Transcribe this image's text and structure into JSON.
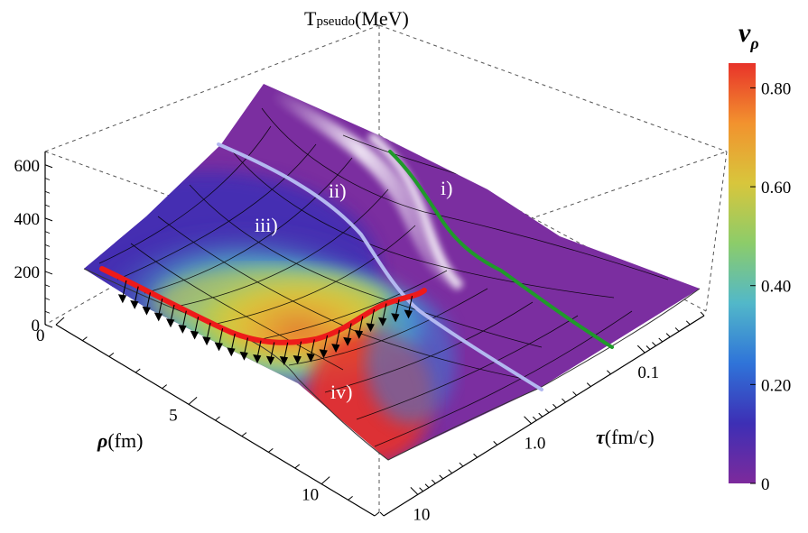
{
  "chart_data": {
    "type": "surface3d",
    "title": "",
    "z_axis": {
      "label_main": "T",
      "label_sub": "pseudo",
      "label_unit": "(MeV)",
      "ticks": [
        0,
        200,
        400,
        600
      ],
      "tick_labels": [
        "0",
        "200",
        "400",
        "600"
      ],
      "range": [
        0,
        650
      ]
    },
    "rho_axis": {
      "label_symbol": "ρ",
      "label_unit": "(fm)",
      "ticks": [
        0,
        5,
        10
      ],
      "tick_labels": [
        "0",
        "5",
        "10"
      ],
      "range": [
        0,
        12
      ]
    },
    "tau_axis": {
      "label_symbol": "τ",
      "label_unit": "(fm/c)",
      "scale": "log",
      "ticks": [
        0.1,
        1.0,
        10
      ],
      "tick_labels": [
        "0.1",
        "1.0",
        "10"
      ],
      "range": [
        0.03,
        20
      ]
    },
    "colorbar": {
      "label_symbol": "v",
      "label_sub": "ρ",
      "ticks": [
        0,
        0.2,
        0.4,
        0.6,
        0.8
      ],
      "tick_labels": [
        "0",
        "0.20",
        "0.40",
        "0.60",
        "0.80"
      ],
      "range": [
        0,
        0.85
      ],
      "colors": [
        "#7d2a9c",
        "#3d2fb5",
        "#2f74d9",
        "#52b8c9",
        "#8ccc6a",
        "#d8c63c",
        "#f2922e",
        "#e8332a"
      ]
    },
    "region_labels": [
      "i)",
      "ii)",
      "iii)",
      "iv)"
    ],
    "curves": [
      {
        "name": "green-line",
        "color": "#1f9a2a"
      },
      {
        "name": "light-blue-line",
        "color": "#b3b8f0"
      },
      {
        "name": "red-freezeout-line",
        "color": "#ee1a1a"
      }
    ]
  }
}
